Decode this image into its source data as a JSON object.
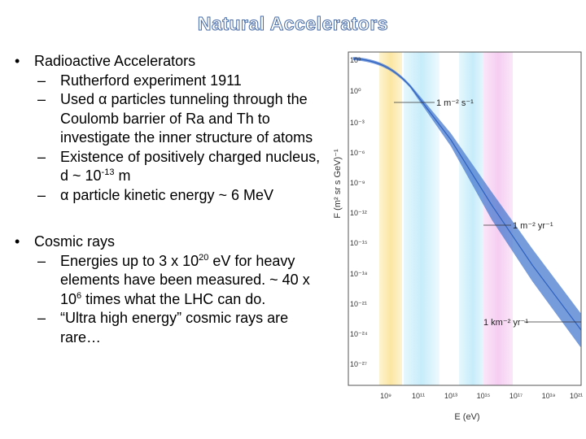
{
  "slide": {
    "title": "Natural Accelerators",
    "bullets": [
      {
        "text": "Radioactive Accelerators",
        "sub": [
          {
            "parts": [
              "Rutherford experiment 1911"
            ]
          },
          {
            "parts": [
              "Used ",
              "α",
              " particles tunneling through the Coulomb barrier of Ra and Th to investigate the inner structure of atoms"
            ]
          },
          {
            "parts": [
              "Existence of positively charged nucleus, d ~ 10",
              "-13",
              " m"
            ]
          },
          {
            "parts": [
              "α",
              " particle kinetic energy ~ 6 MeV"
            ]
          }
        ]
      },
      {
        "text": "Cosmic rays",
        "sub": [
          {
            "parts": [
              "Energies up to 3 x 10",
              "20",
              " eV for heavy elements have been measured. ~ 40 x 10",
              "6",
              " times what the LHC can do."
            ]
          },
          {
            "parts": [
              "“Ultra high energy” cosmic rays are rare…"
            ]
          }
        ]
      }
    ],
    "bullet_glyph": "•",
    "dash_glyph": "–"
  },
  "figure": {
    "y_axis_label": "F (m² sr s GeV)⁻¹",
    "x_axis_label": "E (eV)",
    "y_ticks": [
      "10³",
      "10⁰",
      "10⁻³",
      "10⁻⁶",
      "10⁻⁹",
      "10⁻¹²",
      "10⁻¹⁵",
      "10⁻¹⁸",
      "10⁻²¹",
      "10⁻²⁴",
      "10⁻²⁷"
    ],
    "x_ticks": [
      "10⁹",
      "10¹¹",
      "10¹³",
      "10¹⁵",
      "10¹⁷",
      "10¹⁹",
      "10²¹"
    ],
    "annotations": [
      "1 m⁻² s⁻¹",
      "1 m⁻² yr⁻¹",
      "1 km⁻² yr⁻¹"
    ],
    "colors": {
      "band_yellow": "#fbe6a2",
      "band_cyan": "#cdeffb",
      "band_pink": "#f7d3f3",
      "curve": "#4a7bd0",
      "frame": "#555555",
      "title_outline": "#4a6ea8"
    }
  }
}
